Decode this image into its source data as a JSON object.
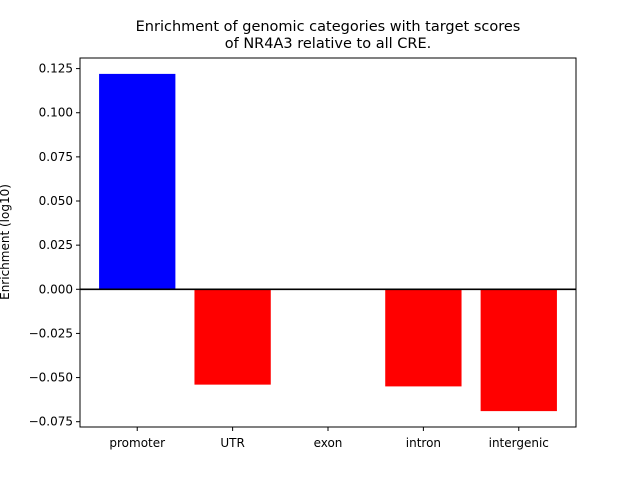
{
  "chart_data": {
    "type": "bar",
    "title_lines": [
      "Enrichment of genomic categories with target scores",
      "of NR4A3 relative to all CRE."
    ],
    "xlabel": "",
    "ylabel": "Enrichment (log10)",
    "categories": [
      "promoter",
      "UTR",
      "exon",
      "intron",
      "intergenic"
    ],
    "values": [
      0.122,
      -0.054,
      0.0,
      -0.055,
      -0.069
    ],
    "ylim": [
      -0.078,
      0.131
    ],
    "yticks": [
      -0.075,
      -0.05,
      -0.025,
      0.0,
      0.025,
      0.05,
      0.075,
      0.1,
      0.125
    ],
    "ytick_labels": [
      "−0.075",
      "−0.050",
      "−0.025",
      "0.000",
      "0.025",
      "0.050",
      "0.075",
      "0.100",
      "0.125"
    ],
    "positive_color": "#0000ff",
    "negative_color": "#ff0000",
    "zero_line": true,
    "grid": false,
    "legend": "none"
  }
}
